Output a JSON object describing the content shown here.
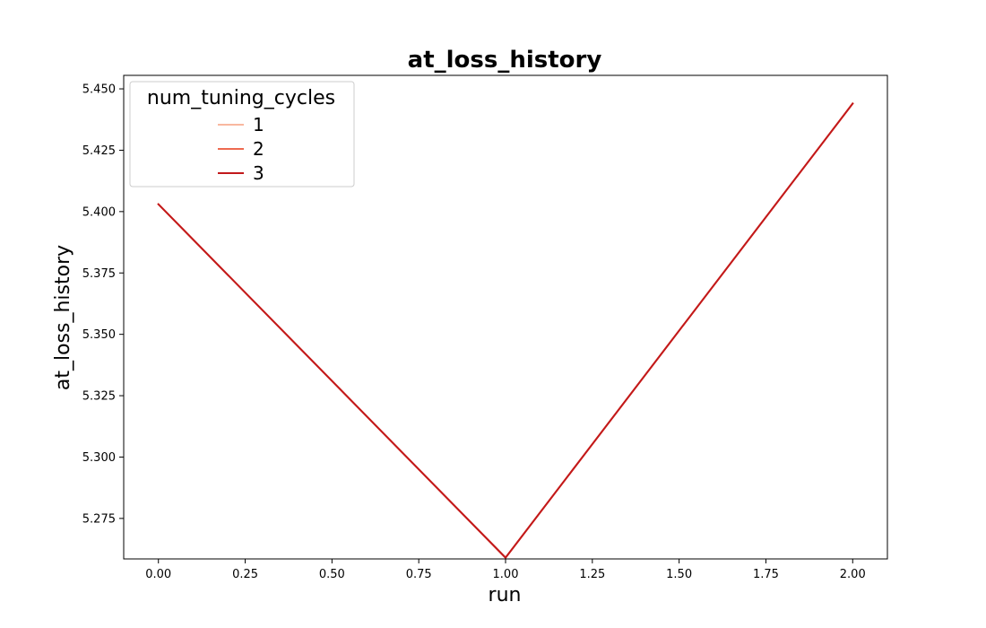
{
  "chart_data": {
    "type": "line",
    "title": "at_loss_history",
    "xlabel": "run",
    "ylabel": "at_loss_history",
    "xlim": [
      -0.1,
      2.1
    ],
    "ylim": [
      5.2585,
      5.4555
    ],
    "x_ticks": [
      0.0,
      0.25,
      0.5,
      0.75,
      1.0,
      1.25,
      1.5,
      1.75,
      2.0
    ],
    "x_tick_labels": [
      "0.00",
      "0.25",
      "0.50",
      "0.75",
      "1.00",
      "1.25",
      "1.50",
      "1.75",
      "2.00"
    ],
    "y_ticks": [
      5.275,
      5.3,
      5.325,
      5.35,
      5.375,
      5.4,
      5.425,
      5.45
    ],
    "y_tick_labels": [
      "5.275",
      "5.300",
      "5.325",
      "5.350",
      "5.375",
      "5.400",
      "5.425",
      "5.450"
    ],
    "grid": false,
    "legend": {
      "title": "num_tuning_cycles",
      "placement": "top-left"
    },
    "series": [
      {
        "name": "1",
        "color": "#f9b89f",
        "x": [
          0,
          1,
          2
        ],
        "y": [
          5.403,
          5.259,
          5.444
        ]
      },
      {
        "name": "2",
        "color": "#ee6a50",
        "x": [
          0,
          1,
          2
        ],
        "y": [
          5.403,
          5.259,
          5.444
        ]
      },
      {
        "name": "3",
        "color": "#c2191b",
        "x": [
          0,
          1,
          2
        ],
        "y": [
          5.403,
          5.259,
          5.444
        ]
      }
    ]
  }
}
